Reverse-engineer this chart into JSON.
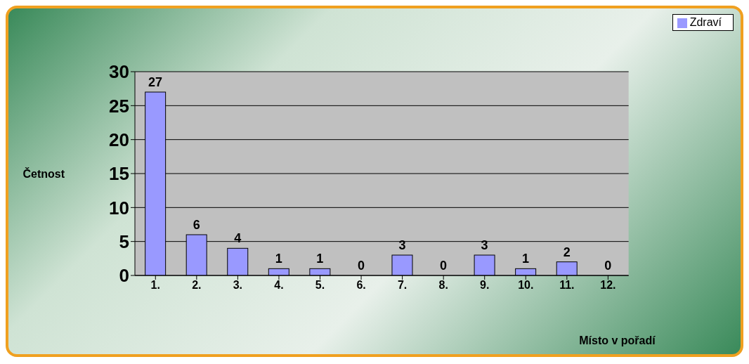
{
  "chart_data": {
    "type": "bar",
    "xlabel": "Místo v pořadí",
    "ylabel": "Četnost",
    "categories": [
      "1.",
      "2.",
      "3.",
      "4.",
      "5.",
      "6.",
      "7.",
      "8.",
      "9.",
      "10.",
      "11.",
      "12."
    ],
    "series": [
      {
        "name": "Zdraví",
        "color": "#9999ff",
        "values": [
          27,
          6,
          4,
          1,
          1,
          0,
          3,
          0,
          3,
          1,
          2,
          0
        ]
      }
    ],
    "ylim": [
      0,
      30
    ],
    "yticks": [
      0,
      5,
      10,
      15,
      20,
      25,
      30
    ],
    "grid": "y",
    "legend": "top right",
    "data_labels": true
  }
}
